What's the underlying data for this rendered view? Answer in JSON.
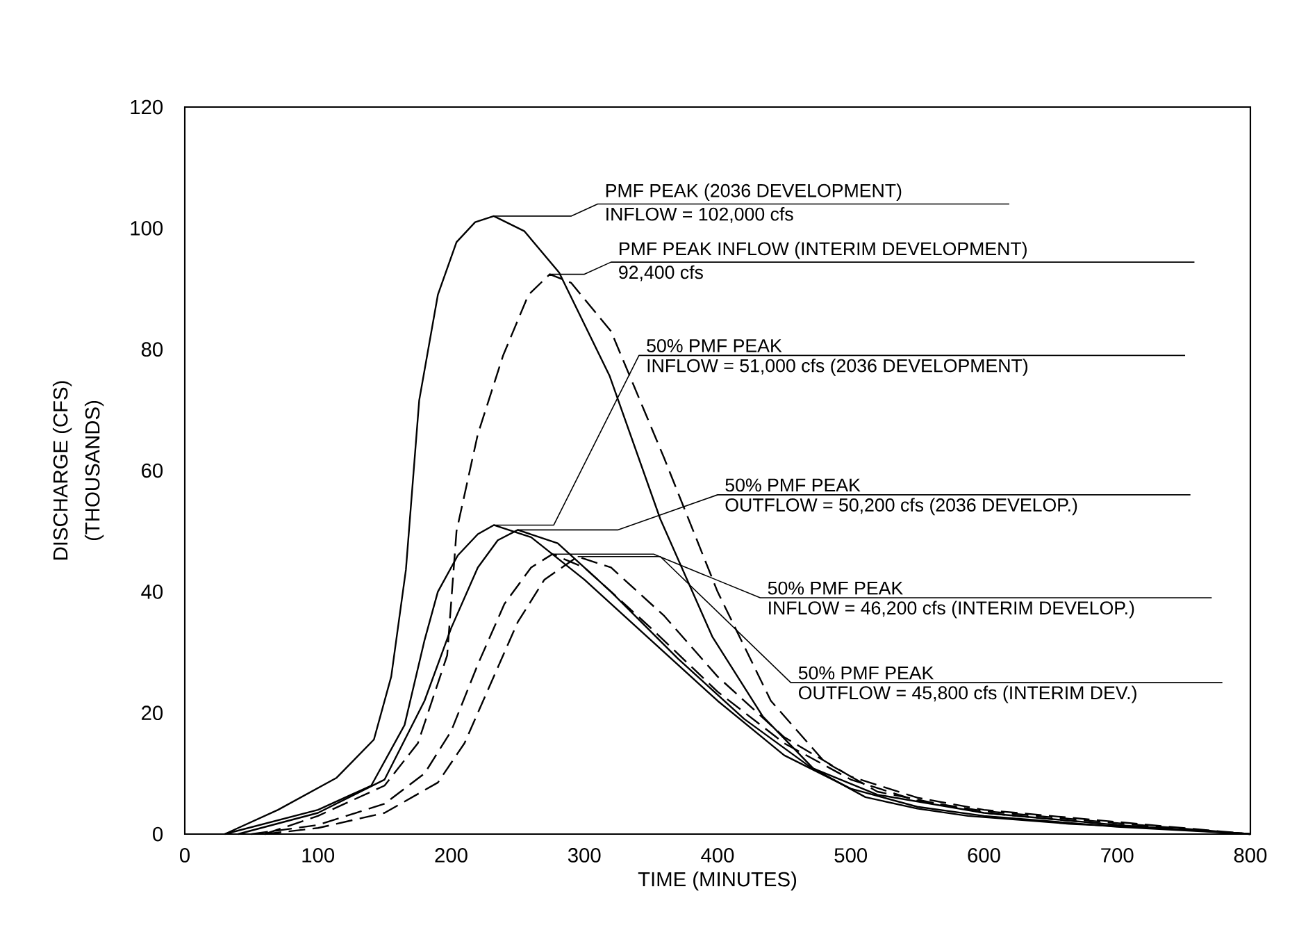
{
  "chart_data": {
    "type": "line",
    "xlabel": "TIME (MINUTES)",
    "ylabel": "DISCHARGE (CFS)",
    "xlim": [
      0,
      800
    ],
    "ylim": [
      0,
      120
    ],
    "xticks": [
      0,
      100,
      200,
      300,
      400,
      500,
      600,
      700,
      800
    ],
    "yticks": [
      0,
      20,
      40,
      60,
      80,
      100,
      120
    ],
    "marker": "none",
    "series": [
      {
        "color": "#000000",
        "line_style": "solid",
        "x": [
          30,
          70,
          114,
          142,
          155,
          166,
          176,
          190,
          204,
          218,
          232,
          255,
          281,
          319,
          357,
          396,
          434,
          472,
          511,
          550,
          588,
          664,
          730,
          800
        ],
        "values": [
          0,
          4,
          9.3,
          15.6,
          26,
          43.6,
          71.6,
          89,
          97.7,
          101,
          102,
          99.5,
          92.7,
          75.6,
          52,
          32.6,
          19.4,
          10.8,
          6.1,
          4.2,
          3,
          1.7,
          1,
          0
        ]
      },
      {
        "color": "#000000",
        "line_style": "dashed",
        "x": [
          60,
          100,
          150,
          175,
          197,
          204,
          220,
          239,
          258,
          274,
          290,
          320,
          360,
          400,
          440,
          480,
          520,
          600,
          700,
          800
        ],
        "values": [
          0,
          3,
          8,
          15,
          29.5,
          50,
          66,
          79,
          89,
          92.4,
          91,
          83,
          62,
          40,
          22,
          12,
          7,
          3.5,
          1.5,
          0
        ]
      },
      {
        "color": "#000000",
        "line_style": "solid",
        "x": [
          30,
          100,
          140,
          165,
          180,
          190,
          205,
          220,
          232,
          260,
          300,
          350,
          400,
          450,
          500,
          550,
          600,
          700,
          800
        ],
        "values": [
          0,
          4,
          8,
          18,
          32,
          40,
          46,
          49.5,
          51,
          49,
          42,
          32,
          22,
          13,
          7.5,
          4.5,
          3,
          1.2,
          0
        ]
      },
      {
        "color": "#000000",
        "line_style": "solid",
        "x": [
          40,
          100,
          150,
          180,
          200,
          220,
          235,
          250,
          280,
          320,
          370,
          420,
          470,
          520,
          600,
          700,
          800
        ],
        "values": [
          0,
          3.5,
          9,
          22,
          34,
          44,
          48.5,
          50.2,
          48,
          40,
          29,
          19,
          11,
          6.5,
          3.5,
          1.5,
          0
        ]
      },
      {
        "color": "#000000",
        "line_style": "dashed",
        "x": [
          50,
          100,
          150,
          180,
          200,
          220,
          240,
          260,
          276,
          300,
          350,
          400,
          450,
          500,
          550,
          600,
          700,
          800
        ],
        "values": [
          0,
          1.5,
          5,
          10,
          17,
          28,
          38,
          44,
          46.2,
          44,
          34,
          23.5,
          15,
          9,
          5.5,
          3.8,
          1.8,
          0
        ]
      },
      {
        "color": "#000000",
        "line_style": "dashed",
        "x": [
          60,
          100,
          150,
          190,
          210,
          230,
          250,
          270,
          295,
          320,
          360,
          400,
          450,
          500,
          550,
          600,
          700,
          800
        ],
        "values": [
          0,
          1,
          3.5,
          8.5,
          15,
          25,
          35,
          42,
          45.8,
          44,
          36,
          26,
          16,
          9.5,
          6,
          4,
          2,
          0
        ]
      }
    ],
    "annotations": [
      "(THOUSANDS)",
      {
        "text": "PMF PEAK (2036 DEVELOPMENT)",
        "x": 232,
        "y": 102
      },
      "INFLOW = 102,000 cfs",
      {
        "text": "PMF PEAK INFLOW (INTERIM DEVELOPMENT)",
        "x": 274,
        "y": 92.4
      },
      "92,400 cfs",
      {
        "text": "50% PMF PEAK",
        "x": 232,
        "y": 51
      },
      "INFLOW = 51,000 cfs (2036 DEVELOPMENT)",
      {
        "text": "50% PMF PEAK",
        "x": 250,
        "y": 50.2
      },
      "OUTFLOW = 50,200 cfs (2036 DEVELOP.)",
      {
        "text": "50% PMF PEAK",
        "x": 276,
        "y": 46.2
      },
      "INFLOW = 46,200 cfs (INTERIM DEVELOP.)",
      {
        "text": "50% PMF PEAK",
        "x": 295,
        "y": 45.8
      },
      "OUTFLOW = 45,800 cfs (INTERIM DEV.)"
    ]
  }
}
